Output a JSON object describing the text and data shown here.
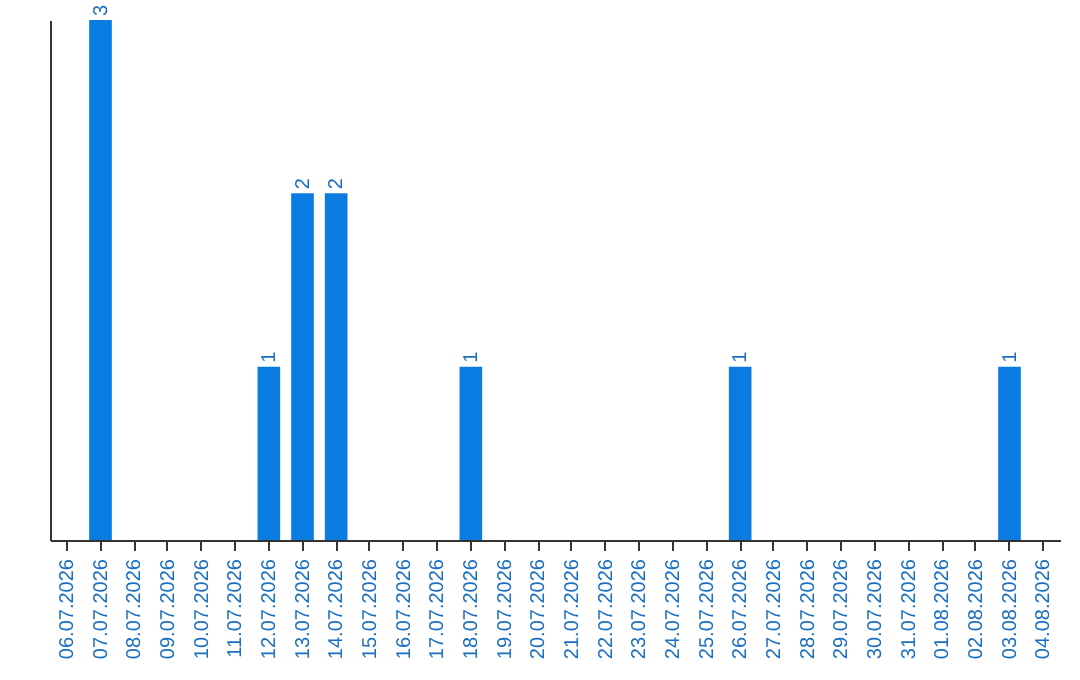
{
  "chart_data": {
    "type": "bar",
    "categories": [
      "06.07.2026",
      "07.07.2026",
      "08.07.2026",
      "09.07.2026",
      "10.07.2026",
      "11.07.2026",
      "12.07.2026",
      "13.07.2026",
      "14.07.2026",
      "15.07.2026",
      "16.07.2026",
      "17.07.2026",
      "18.07.2026",
      "19.07.2026",
      "20.07.2026",
      "21.07.2026",
      "22.07.2026",
      "23.07.2026",
      "24.07.2026",
      "25.07.2026",
      "26.07.2026",
      "27.07.2026",
      "28.07.2026",
      "29.07.2026",
      "30.07.2026",
      "31.07.2026",
      "01.08.2026",
      "02.08.2026",
      "03.08.2026",
      "04.08.2026"
    ],
    "values": [
      0,
      3,
      0,
      0,
      0,
      0,
      1,
      2,
      2,
      0,
      0,
      0,
      1,
      0,
      0,
      0,
      0,
      0,
      0,
      0,
      1,
      0,
      0,
      0,
      0,
      0,
      0,
      0,
      1,
      0
    ],
    "value_labels": [
      null,
      "3",
      null,
      null,
      null,
      null,
      "1",
      "2",
      "2",
      null,
      null,
      null,
      "1",
      null,
      null,
      null,
      null,
      null,
      null,
      null,
      "1",
      null,
      null,
      null,
      null,
      null,
      null,
      null,
      "1",
      null
    ],
    "color": "#0a7be0",
    "relative": false,
    "grid": false,
    "tick_labels": "x"
  }
}
